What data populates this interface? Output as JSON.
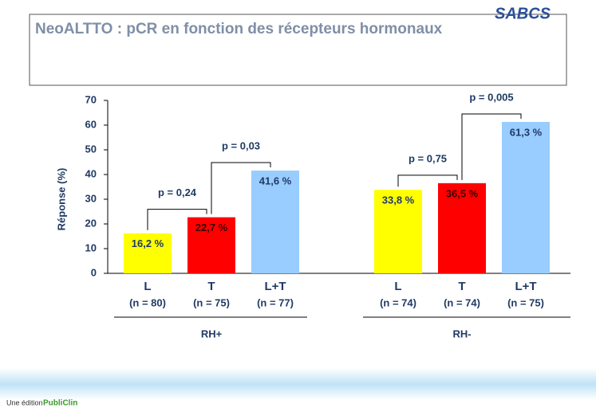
{
  "logo": "SABCS",
  "footer": {
    "prefix": "Une édition",
    "brand": "PubliClin"
  },
  "chart_data": {
    "type": "bar",
    "title": "NeoALTTO : pCR en fonction des récepteurs hormonaux",
    "ylabel": "Réponse (%)",
    "ylim": [
      0,
      70
    ],
    "yticks": [
      0,
      10,
      20,
      30,
      40,
      50,
      60,
      70
    ],
    "groups": [
      {
        "name": "RH+",
        "categories": [
          "L",
          "T",
          "L+T"
        ],
        "notes": [
          "(n = 80)",
          "(n = 75)",
          "(n = 77)"
        ],
        "values": [
          16.2,
          22.7,
          41.6
        ],
        "value_labels": [
          "16,2 %",
          "22,7 %",
          "41,6 %"
        ],
        "colors": [
          "#ffff00",
          "#ff0000",
          "#99ccff"
        ],
        "p_values": [
          "p = 0,24",
          "p = 0,03"
        ]
      },
      {
        "name": "RH-",
        "categories": [
          "L",
          "T",
          "L+T"
        ],
        "notes": [
          "(n = 74)",
          "(n = 74)",
          "(n = 75)"
        ],
        "values": [
          33.8,
          36.5,
          61.3
        ],
        "value_labels": [
          "33,8 %",
          "36,5 %",
          "61,3 %"
        ],
        "colors": [
          "#ffff00",
          "#ff0000",
          "#99ccff"
        ],
        "p_values": [
          "p = 0,75",
          "p = 0,005"
        ]
      }
    ]
  }
}
